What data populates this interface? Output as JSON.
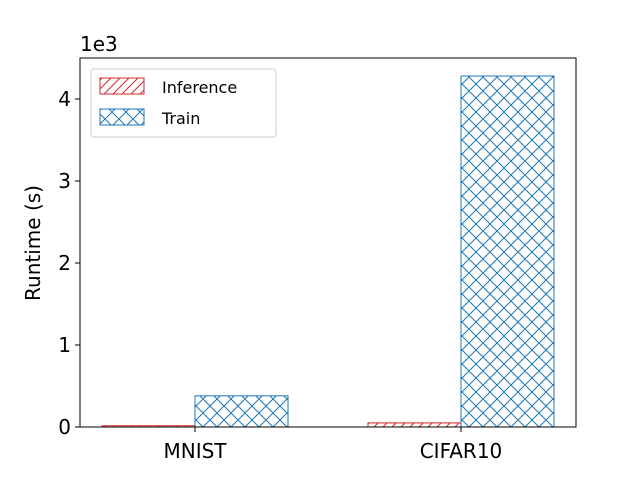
{
  "chart_data": {
    "type": "bar",
    "categories": [
      "MNIST",
      "CIFAR10"
    ],
    "series": [
      {
        "name": "Inference",
        "values": [
          15,
          50
        ],
        "color": "#d62728",
        "hatch": "diagonal"
      },
      {
        "name": "Train",
        "values": [
          380,
          4280
        ],
        "color": "#1f77b4",
        "hatch": "cross"
      }
    ],
    "ylabel": "Runtime (s)",
    "xlabel": "",
    "ylim": [
      0,
      4500
    ],
    "yticks": [
      0,
      1000,
      2000,
      3000,
      4000
    ],
    "ytick_labels": [
      "0",
      "1",
      "2",
      "3",
      "4"
    ],
    "y_offset_label": "1e3",
    "legend_position": "top-left",
    "grid": false
  }
}
